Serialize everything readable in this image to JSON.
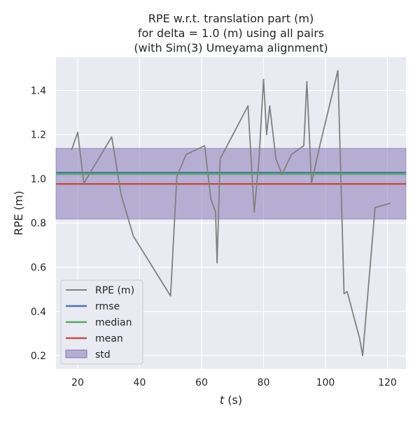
{
  "chart_data": {
    "type": "line",
    "title_lines": [
      "RPE w.r.t. translation part (m)",
      "for delta = 1.0 (m) using all pairs",
      "(with Sim(3) Umeyama alignment)"
    ],
    "xlabel_var": "t",
    "xlabel_unit": "(s)",
    "ylabel": "RPE (m)",
    "xlim": [
      13,
      126
    ],
    "ylim": [
      0.14,
      1.55
    ],
    "xticks": [
      20,
      40,
      60,
      80,
      100,
      120
    ],
    "yticks": [
      0.2,
      0.4,
      0.6,
      0.8,
      1.0,
      1.2,
      1.4
    ],
    "ytick_labels": [
      "0.2",
      "0.4",
      "0.6",
      "0.8",
      "1.0",
      "1.2",
      "1.4"
    ],
    "grid": true,
    "legend_position": "lower-left",
    "series": [
      {
        "name": "RPE (m)",
        "color": "#808080",
        "x": [
          18,
          20,
          22,
          31,
          34,
          38,
          50,
          52,
          55,
          61,
          63,
          64.5,
          65,
          66,
          75,
          77,
          78.5,
          80,
          81,
          82,
          84,
          86,
          89,
          93,
          94,
          95.5,
          98,
          104,
          106,
          107,
          111,
          112,
          116,
          121
        ],
        "y": [
          1.13,
          1.21,
          0.98,
          1.19,
          0.93,
          0.74,
          0.47,
          1.01,
          1.11,
          1.15,
          0.91,
          0.85,
          0.62,
          1.09,
          1.33,
          0.85,
          1.08,
          1.45,
          1.2,
          1.33,
          1.09,
          1.02,
          1.11,
          1.15,
          1.44,
          0.98,
          1.14,
          1.49,
          0.48,
          0.49,
          0.28,
          0.2,
          0.87,
          0.89
        ]
      }
    ],
    "stats": {
      "rmse": {
        "name": "rmse",
        "value": 1.028,
        "color": "#4c72b0"
      },
      "median": {
        "name": "median",
        "value": 1.022,
        "color": "#55a868"
      },
      "mean": {
        "name": "mean",
        "value": 0.977,
        "color": "#c44e52"
      },
      "std": {
        "name": "std",
        "low": 0.818,
        "high": 1.138,
        "color": "#8172b2"
      }
    }
  }
}
